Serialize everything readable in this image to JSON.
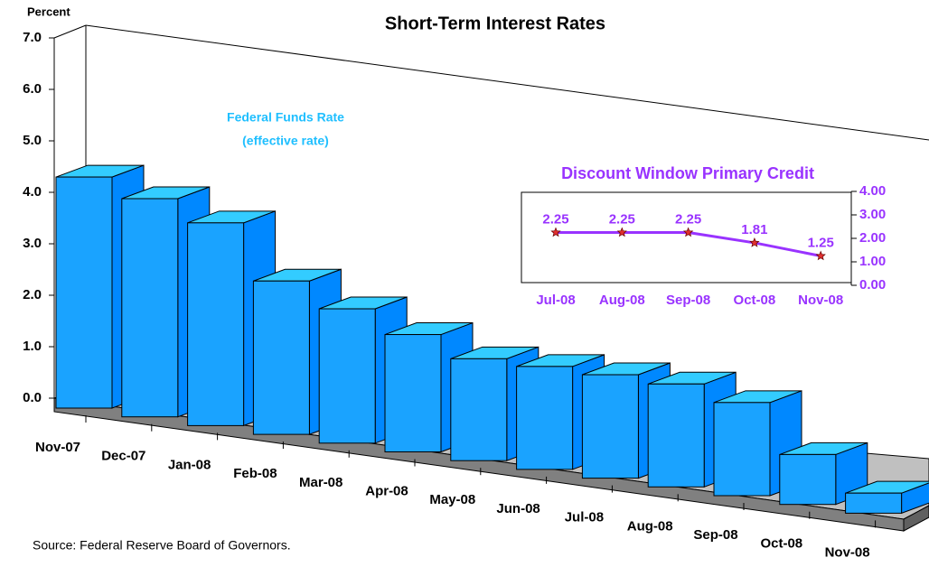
{
  "chart_data": [
    {
      "type": "bar",
      "title": "Short-Term Interest Rates",
      "y_label": "Percent",
      "annotations": [
        "Federal Funds Rate",
        "(effective rate)"
      ],
      "source": "Source: Federal Reserve Board of Governors.",
      "categories": [
        "Nov-07",
        "Dec-07",
        "Jan-08",
        "Feb-08",
        "Mar-08",
        "Apr-08",
        "May-08",
        "Jun-08",
        "Jul-08",
        "Aug-08",
        "Sep-08",
        "Oct-08",
        "Nov-08"
      ],
      "values": [
        4.49,
        4.24,
        3.94,
        2.98,
        2.61,
        2.28,
        1.98,
        2.0,
        2.01,
        2.0,
        1.81,
        0.97,
        0.39
      ],
      "color": "#1aa3ff",
      "ylim": [
        0,
        7
      ],
      "yticks": [
        {
          "value": 0,
          "label": "0.0"
        },
        {
          "value": 1,
          "label": "1.0"
        },
        {
          "value": 2,
          "label": "2.0"
        },
        {
          "value": 3,
          "label": "3.0"
        },
        {
          "value": 4,
          "label": "4.0"
        },
        {
          "value": 5,
          "label": "5.0"
        },
        {
          "value": 6,
          "label": "6.0"
        },
        {
          "value": 7,
          "label": "7.0"
        }
      ]
    },
    {
      "type": "line",
      "title": "Discount Window Primary Credit",
      "categories": [
        "Jul-08",
        "Aug-08",
        "Sep-08",
        "Oct-08",
        "Nov-08"
      ],
      "values": [
        2.25,
        2.25,
        2.25,
        1.81,
        1.25
      ],
      "color": "#9933ff",
      "marker_color": "#e03030",
      "ylim": [
        0,
        4
      ],
      "yticks": [
        {
          "value": 0,
          "label": "0.00"
        },
        {
          "value": 1,
          "label": "1.00"
        },
        {
          "value": 2,
          "label": "2.00"
        },
        {
          "value": 3,
          "label": "3.00"
        },
        {
          "value": 4,
          "label": "4.00"
        }
      ]
    }
  ]
}
